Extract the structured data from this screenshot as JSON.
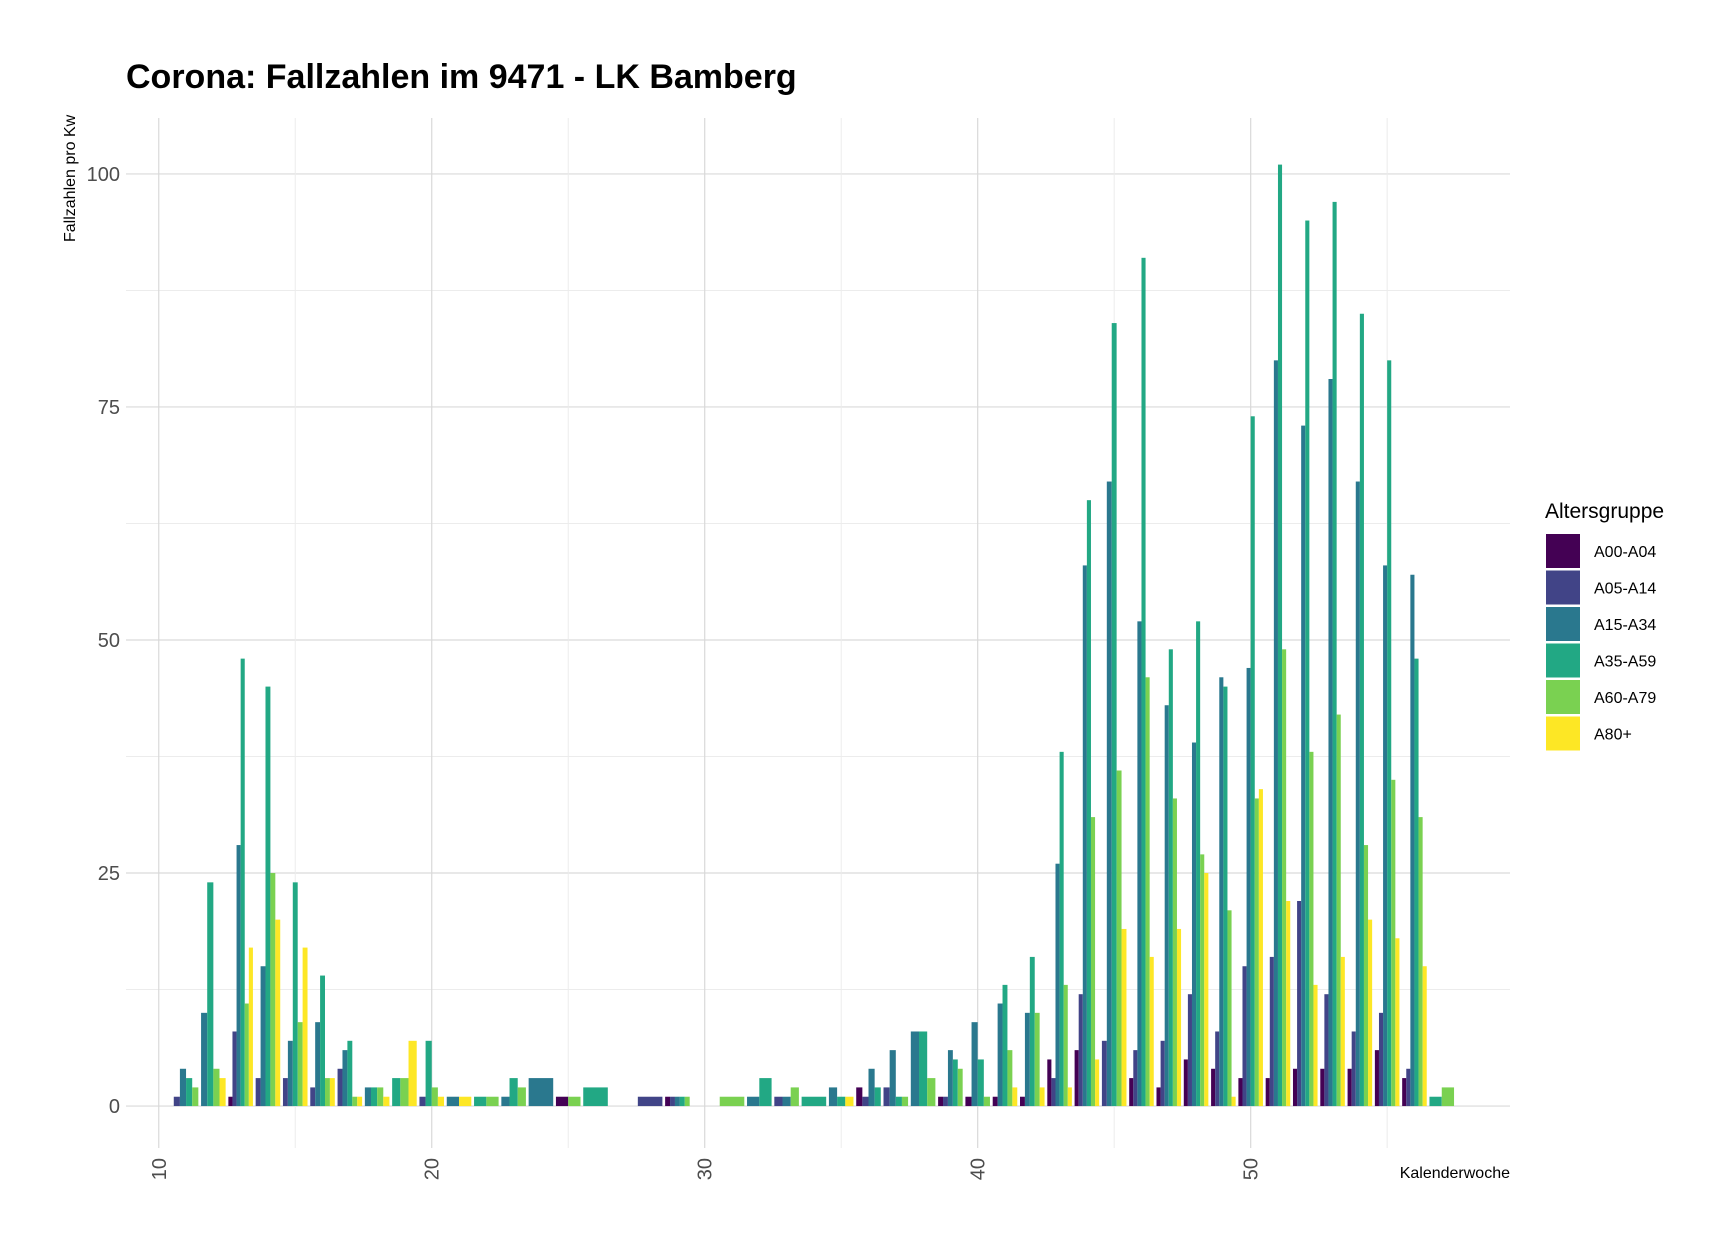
{
  "chart_data": {
    "type": "bar",
    "title": "Corona: Fallzahlen im 9471 - LK Bamberg",
    "xlabel": "Kalenderwoche",
    "ylabel": "Fallzahlen pro Kw",
    "xlim": [
      8.8,
      59.5
    ],
    "ylim": [
      -4.5,
      106
    ],
    "xticks": [
      10,
      20,
      30,
      40,
      50
    ],
    "yticks": [
      0,
      25,
      50,
      75,
      100
    ],
    "grid": true,
    "legend_title": "Altersgruppe",
    "legend_position": "right",
    "groups": [
      "A00-A04",
      "A05-A14",
      "A15-A34",
      "A35-A59",
      "A60-A79",
      "A80+"
    ],
    "colors": [
      "#440154",
      "#414487",
      "#2a788e",
      "#22a884",
      "#7ad151",
      "#fde725"
    ],
    "weeks": [
      {
        "x": 11,
        "values": [
          null,
          1,
          4,
          3,
          2,
          null
        ]
      },
      {
        "x": 12,
        "values": [
          null,
          null,
          10,
          24,
          4,
          3
        ]
      },
      {
        "x": 13,
        "values": [
          1,
          8,
          28,
          48,
          11,
          17
        ]
      },
      {
        "x": 14,
        "values": [
          null,
          3,
          15,
          45,
          25,
          20
        ]
      },
      {
        "x": 15,
        "values": [
          null,
          3,
          7,
          24,
          9,
          17
        ]
      },
      {
        "x": 16,
        "values": [
          null,
          2,
          9,
          14,
          3,
          3
        ]
      },
      {
        "x": 17,
        "values": [
          null,
          4,
          6,
          7,
          1,
          1
        ]
      },
      {
        "x": 18,
        "values": [
          null,
          null,
          2,
          2,
          2,
          1
        ]
      },
      {
        "x": 19,
        "values": [
          null,
          null,
          null,
          3,
          3,
          7
        ]
      },
      {
        "x": 20,
        "values": [
          null,
          1,
          null,
          7,
          2,
          1
        ]
      },
      {
        "x": 21,
        "values": [
          null,
          null,
          1,
          null,
          null,
          1
        ]
      },
      {
        "x": 22,
        "values": [
          null,
          null,
          null,
          1,
          1,
          null
        ]
      },
      {
        "x": 23,
        "values": [
          null,
          null,
          1,
          3,
          2,
          null
        ]
      },
      {
        "x": 24,
        "values": [
          null,
          null,
          3,
          null,
          null,
          null
        ]
      },
      {
        "x": 25,
        "values": [
          1,
          null,
          null,
          null,
          1,
          null
        ]
      },
      {
        "x": 26,
        "values": [
          null,
          null,
          null,
          2,
          null,
          null
        ]
      },
      {
        "x": 28,
        "values": [
          null,
          1,
          null,
          null,
          null,
          null
        ]
      },
      {
        "x": 29,
        "values": [
          1,
          1,
          1,
          1,
          1,
          null
        ]
      },
      {
        "x": 31,
        "values": [
          null,
          null,
          null,
          null,
          1,
          null
        ]
      },
      {
        "x": 32,
        "values": [
          null,
          null,
          1,
          3,
          null,
          null
        ]
      },
      {
        "x": 33,
        "values": [
          null,
          1,
          1,
          null,
          2,
          null
        ]
      },
      {
        "x": 34,
        "values": [
          null,
          null,
          null,
          1,
          null,
          null
        ]
      },
      {
        "x": 35,
        "values": [
          null,
          null,
          2,
          1,
          null,
          1
        ]
      },
      {
        "x": 36,
        "values": [
          2,
          1,
          4,
          2,
          null,
          null
        ]
      },
      {
        "x": 37,
        "values": [
          null,
          2,
          6,
          1,
          1,
          null
        ]
      },
      {
        "x": 38,
        "values": [
          null,
          null,
          8,
          8,
          3,
          null
        ]
      },
      {
        "x": 39,
        "values": [
          1,
          1,
          6,
          5,
          4,
          null
        ]
      },
      {
        "x": 40,
        "values": [
          1,
          null,
          9,
          5,
          1,
          null
        ]
      },
      {
        "x": 41,
        "values": [
          1,
          null,
          11,
          13,
          6,
          2
        ]
      },
      {
        "x": 42,
        "values": [
          1,
          null,
          10,
          16,
          10,
          2
        ]
      },
      {
        "x": 43,
        "values": [
          5,
          3,
          26,
          38,
          13,
          2
        ]
      },
      {
        "x": 44,
        "values": [
          6,
          12,
          58,
          65,
          31,
          5
        ]
      },
      {
        "x": 45,
        "values": [
          null,
          7,
          67,
          84,
          36,
          19
        ]
      },
      {
        "x": 46,
        "values": [
          3,
          6,
          52,
          91,
          46,
          16
        ]
      },
      {
        "x": 47,
        "values": [
          2,
          7,
          43,
          49,
          33,
          19
        ]
      },
      {
        "x": 48,
        "values": [
          5,
          12,
          39,
          52,
          27,
          25
        ]
      },
      {
        "x": 49,
        "values": [
          4,
          8,
          46,
          45,
          21,
          1
        ]
      },
      {
        "x": 50,
        "values": [
          3,
          15,
          47,
          74,
          33,
          34
        ]
      },
      {
        "x": 51,
        "values": [
          3,
          16,
          80,
          101,
          49,
          22
        ]
      },
      {
        "x": 52,
        "values": [
          4,
          22,
          73,
          95,
          38,
          13
        ]
      },
      {
        "x": 53,
        "values": [
          4,
          12,
          78,
          97,
          42,
          16
        ]
      },
      {
        "x": 54,
        "values": [
          4,
          8,
          67,
          85,
          28,
          20
        ]
      },
      {
        "x": 55,
        "values": [
          6,
          10,
          58,
          80,
          35,
          18
        ]
      },
      {
        "x": 56,
        "values": [
          3,
          4,
          57,
          48,
          31,
          15
        ]
      },
      {
        "x": 57,
        "values": [
          null,
          null,
          null,
          1,
          2,
          null
        ]
      }
    ]
  }
}
